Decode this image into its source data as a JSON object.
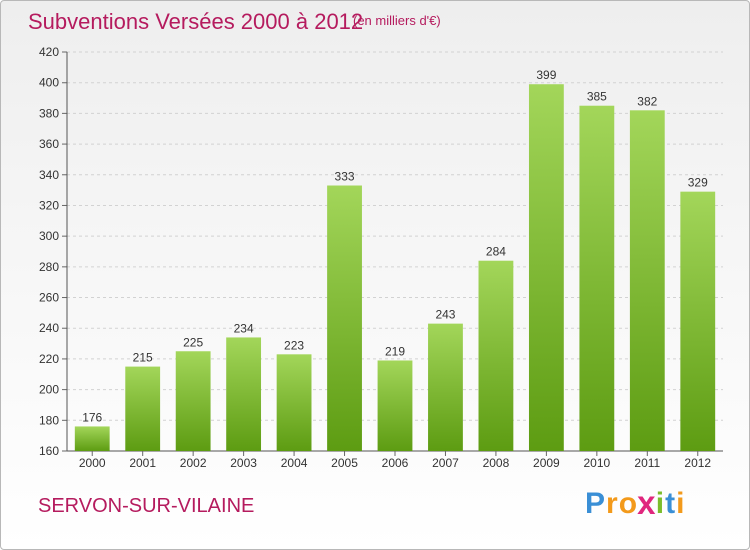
{
  "chart_data": {
    "type": "bar",
    "title": "Subventions Versées 2000 à 2012",
    "subtitle": "(en milliers d'€)",
    "categories": [
      "2000",
      "2001",
      "2002",
      "2003",
      "2004",
      "2005",
      "2006",
      "2007",
      "2008",
      "2009",
      "2010",
      "2011",
      "2012"
    ],
    "values": [
      176,
      215,
      225,
      234,
      223,
      333,
      219,
      243,
      284,
      399,
      385,
      382,
      329
    ],
    "ylim": [
      160,
      420
    ],
    "yticks": [
      160,
      180,
      200,
      220,
      240,
      260,
      280,
      300,
      320,
      340,
      360,
      380,
      400,
      420
    ],
    "grid": true,
    "bar_color": "#7cbd2c",
    "title_color": "#b51b5e"
  },
  "footer": {
    "commune": "SERVON-SUR-VILAINE"
  },
  "brand": {
    "letters": [
      {
        "char": "P",
        "color": "#3a8fd6"
      },
      {
        "char": "r",
        "color": "#f39a1b"
      },
      {
        "char": "o",
        "color": "#f39a1b"
      },
      {
        "char": "x",
        "color": "#e0267d"
      },
      {
        "char": "i",
        "color": "#7cbd2c"
      },
      {
        "char": "t",
        "color": "#3a8fd6"
      },
      {
        "char": "i",
        "color": "#f39a1b"
      }
    ]
  }
}
